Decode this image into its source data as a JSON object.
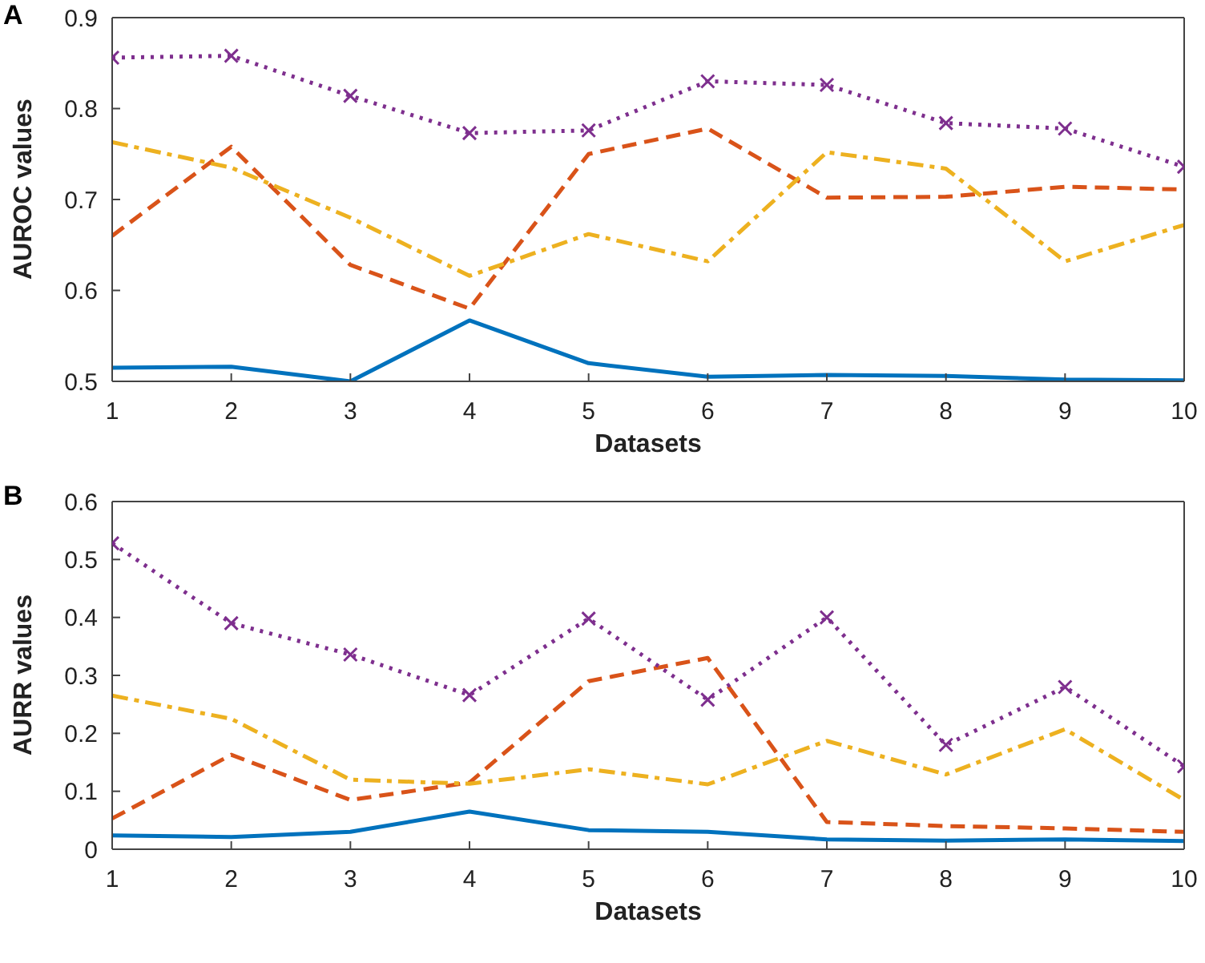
{
  "chart_data": [
    {
      "type": "line",
      "title": "A",
      "xlabel": "Datasets",
      "ylabel": "AUROC values",
      "x": [
        1,
        2,
        3,
        4,
        5,
        6,
        7,
        8,
        9,
        10
      ],
      "xlim": [
        1,
        10
      ],
      "xticks": [
        1,
        2,
        3,
        4,
        5,
        6,
        7,
        8,
        9,
        10
      ],
      "ylim": [
        0.5,
        0.9
      ],
      "yticks": [
        0.5,
        0.6,
        0.7,
        0.8,
        0.9
      ],
      "series": [
        {
          "color": "#0072bd",
          "line_style": "solid",
          "marker": "none",
          "values": [
            0.515,
            0.516,
            0.5,
            0.567,
            0.52,
            0.505,
            0.507,
            0.506,
            0.502,
            0.501
          ]
        },
        {
          "color": "#d95319",
          "line_style": "dashed",
          "marker": "none",
          "values": [
            0.66,
            0.758,
            0.628,
            0.58,
            0.75,
            0.778,
            0.702,
            0.703,
            0.714,
            0.711
          ]
        },
        {
          "color": "#edb120",
          "line_style": "dashdot",
          "marker": "none",
          "values": [
            0.763,
            0.735,
            0.68,
            0.616,
            0.662,
            0.632,
            0.752,
            0.734,
            0.632,
            0.672
          ]
        },
        {
          "color": "#7e2f8e",
          "line_style": "dotted",
          "marker": "cross",
          "values": [
            0.856,
            0.858,
            0.814,
            0.773,
            0.776,
            0.83,
            0.826,
            0.784,
            0.778,
            0.736
          ]
        }
      ]
    },
    {
      "type": "line",
      "title": "B",
      "xlabel": "Datasets",
      "ylabel": "AURR values",
      "x": [
        1,
        2,
        3,
        4,
        5,
        6,
        7,
        8,
        9,
        10
      ],
      "xlim": [
        1,
        10
      ],
      "xticks": [
        1,
        2,
        3,
        4,
        5,
        6,
        7,
        8,
        9,
        10
      ],
      "ylim": [
        0,
        0.6
      ],
      "yticks": [
        0,
        0.1,
        0.2,
        0.3,
        0.4,
        0.5,
        0.6
      ],
      "series": [
        {
          "color": "#0072bd",
          "line_style": "solid",
          "marker": "none",
          "values": [
            0.024,
            0.021,
            0.03,
            0.065,
            0.033,
            0.03,
            0.017,
            0.015,
            0.017,
            0.014
          ]
        },
        {
          "color": "#d95319",
          "line_style": "dashed",
          "marker": "none",
          "values": [
            0.053,
            0.163,
            0.085,
            0.115,
            0.29,
            0.33,
            0.047,
            0.04,
            0.036,
            0.03
          ]
        },
        {
          "color": "#edb120",
          "line_style": "dashdot",
          "marker": "none",
          "values": [
            0.265,
            0.225,
            0.12,
            0.113,
            0.138,
            0.112,
            0.187,
            0.129,
            0.207,
            0.085
          ]
        },
        {
          "color": "#7e2f8e",
          "line_style": "dotted",
          "marker": "cross",
          "values": [
            0.528,
            0.39,
            0.336,
            0.266,
            0.398,
            0.258,
            0.4,
            0.18,
            0.28,
            0.143
          ]
        }
      ]
    }
  ]
}
